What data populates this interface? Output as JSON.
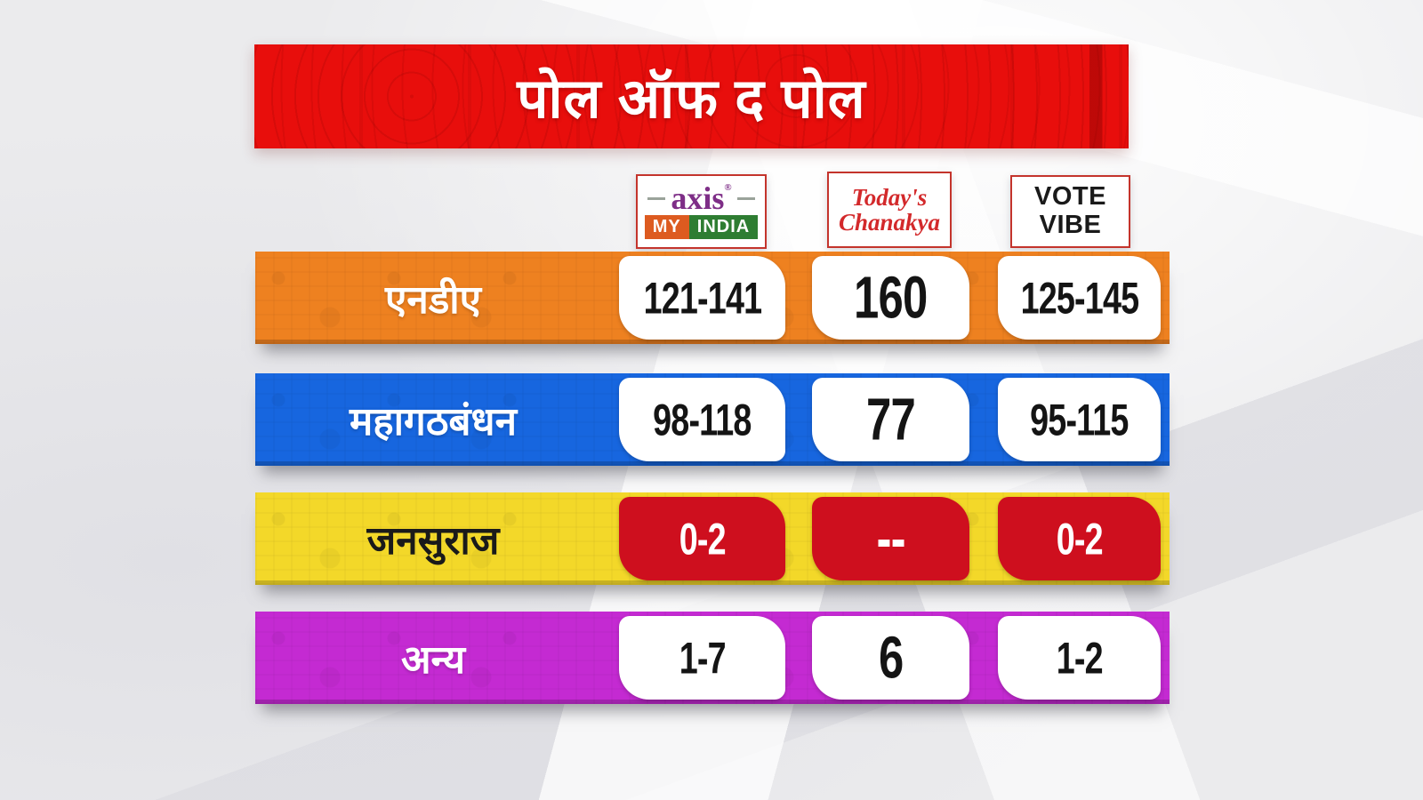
{
  "title": "पोल ऑफ द पोल",
  "pollsters": {
    "axis": {
      "name": "Axis My India",
      "word": "axis",
      "registered": "®",
      "tag_left": "MY",
      "tag_right": "INDIA"
    },
    "chanakya": {
      "name": "Today's Chanakya",
      "line1": "Today's",
      "line2": "Chanakya"
    },
    "votevibe": {
      "name": "Vote Vibe",
      "line1": "VOTE",
      "line2": "VIBE"
    }
  },
  "chart_data": {
    "type": "table",
    "title": "पोल ऑफ द पोल",
    "columns": [
      "Axis My India",
      "Today's Chanakya",
      "Vote Vibe"
    ],
    "rows": [
      {
        "party": "एनडीए",
        "values": [
          "121-141",
          "160",
          "125-145"
        ],
        "bar_color": "#ee8120",
        "label_color": "#ffffff",
        "cell_bg": "#ffffff",
        "cell_text": "#141414"
      },
      {
        "party": "महागठबंधन",
        "values": [
          "98-118",
          "77",
          "95-115"
        ],
        "bar_color": "#1766df",
        "label_color": "#ffffff",
        "cell_bg": "#ffffff",
        "cell_text": "#141414"
      },
      {
        "party": "जनसुराज",
        "values": [
          "0-2",
          "--",
          "0-2"
        ],
        "bar_color": "#f3d829",
        "label_color": "#1a1a1a",
        "cell_bg": "#ce0f1e",
        "cell_text": "#ffffff"
      },
      {
        "party": "अन्य",
        "values": [
          "1-7",
          "6",
          "1-2"
        ],
        "bar_color": "#c42ad2",
        "label_color": "#ffffff",
        "cell_bg": "#ffffff",
        "cell_text": "#141414"
      }
    ]
  },
  "colors": {
    "banner": "#e80e0c",
    "title_text": "#ffffff",
    "logo_border": "#c4342c",
    "axis_purple": "#7e2e87",
    "axis_orange": "#dd5b20",
    "axis_green": "#2e7d32",
    "chanakya_red": "#d3292b",
    "votevibe_text": "#1a1a1a",
    "red_value_box": "#ce0f1e"
  }
}
